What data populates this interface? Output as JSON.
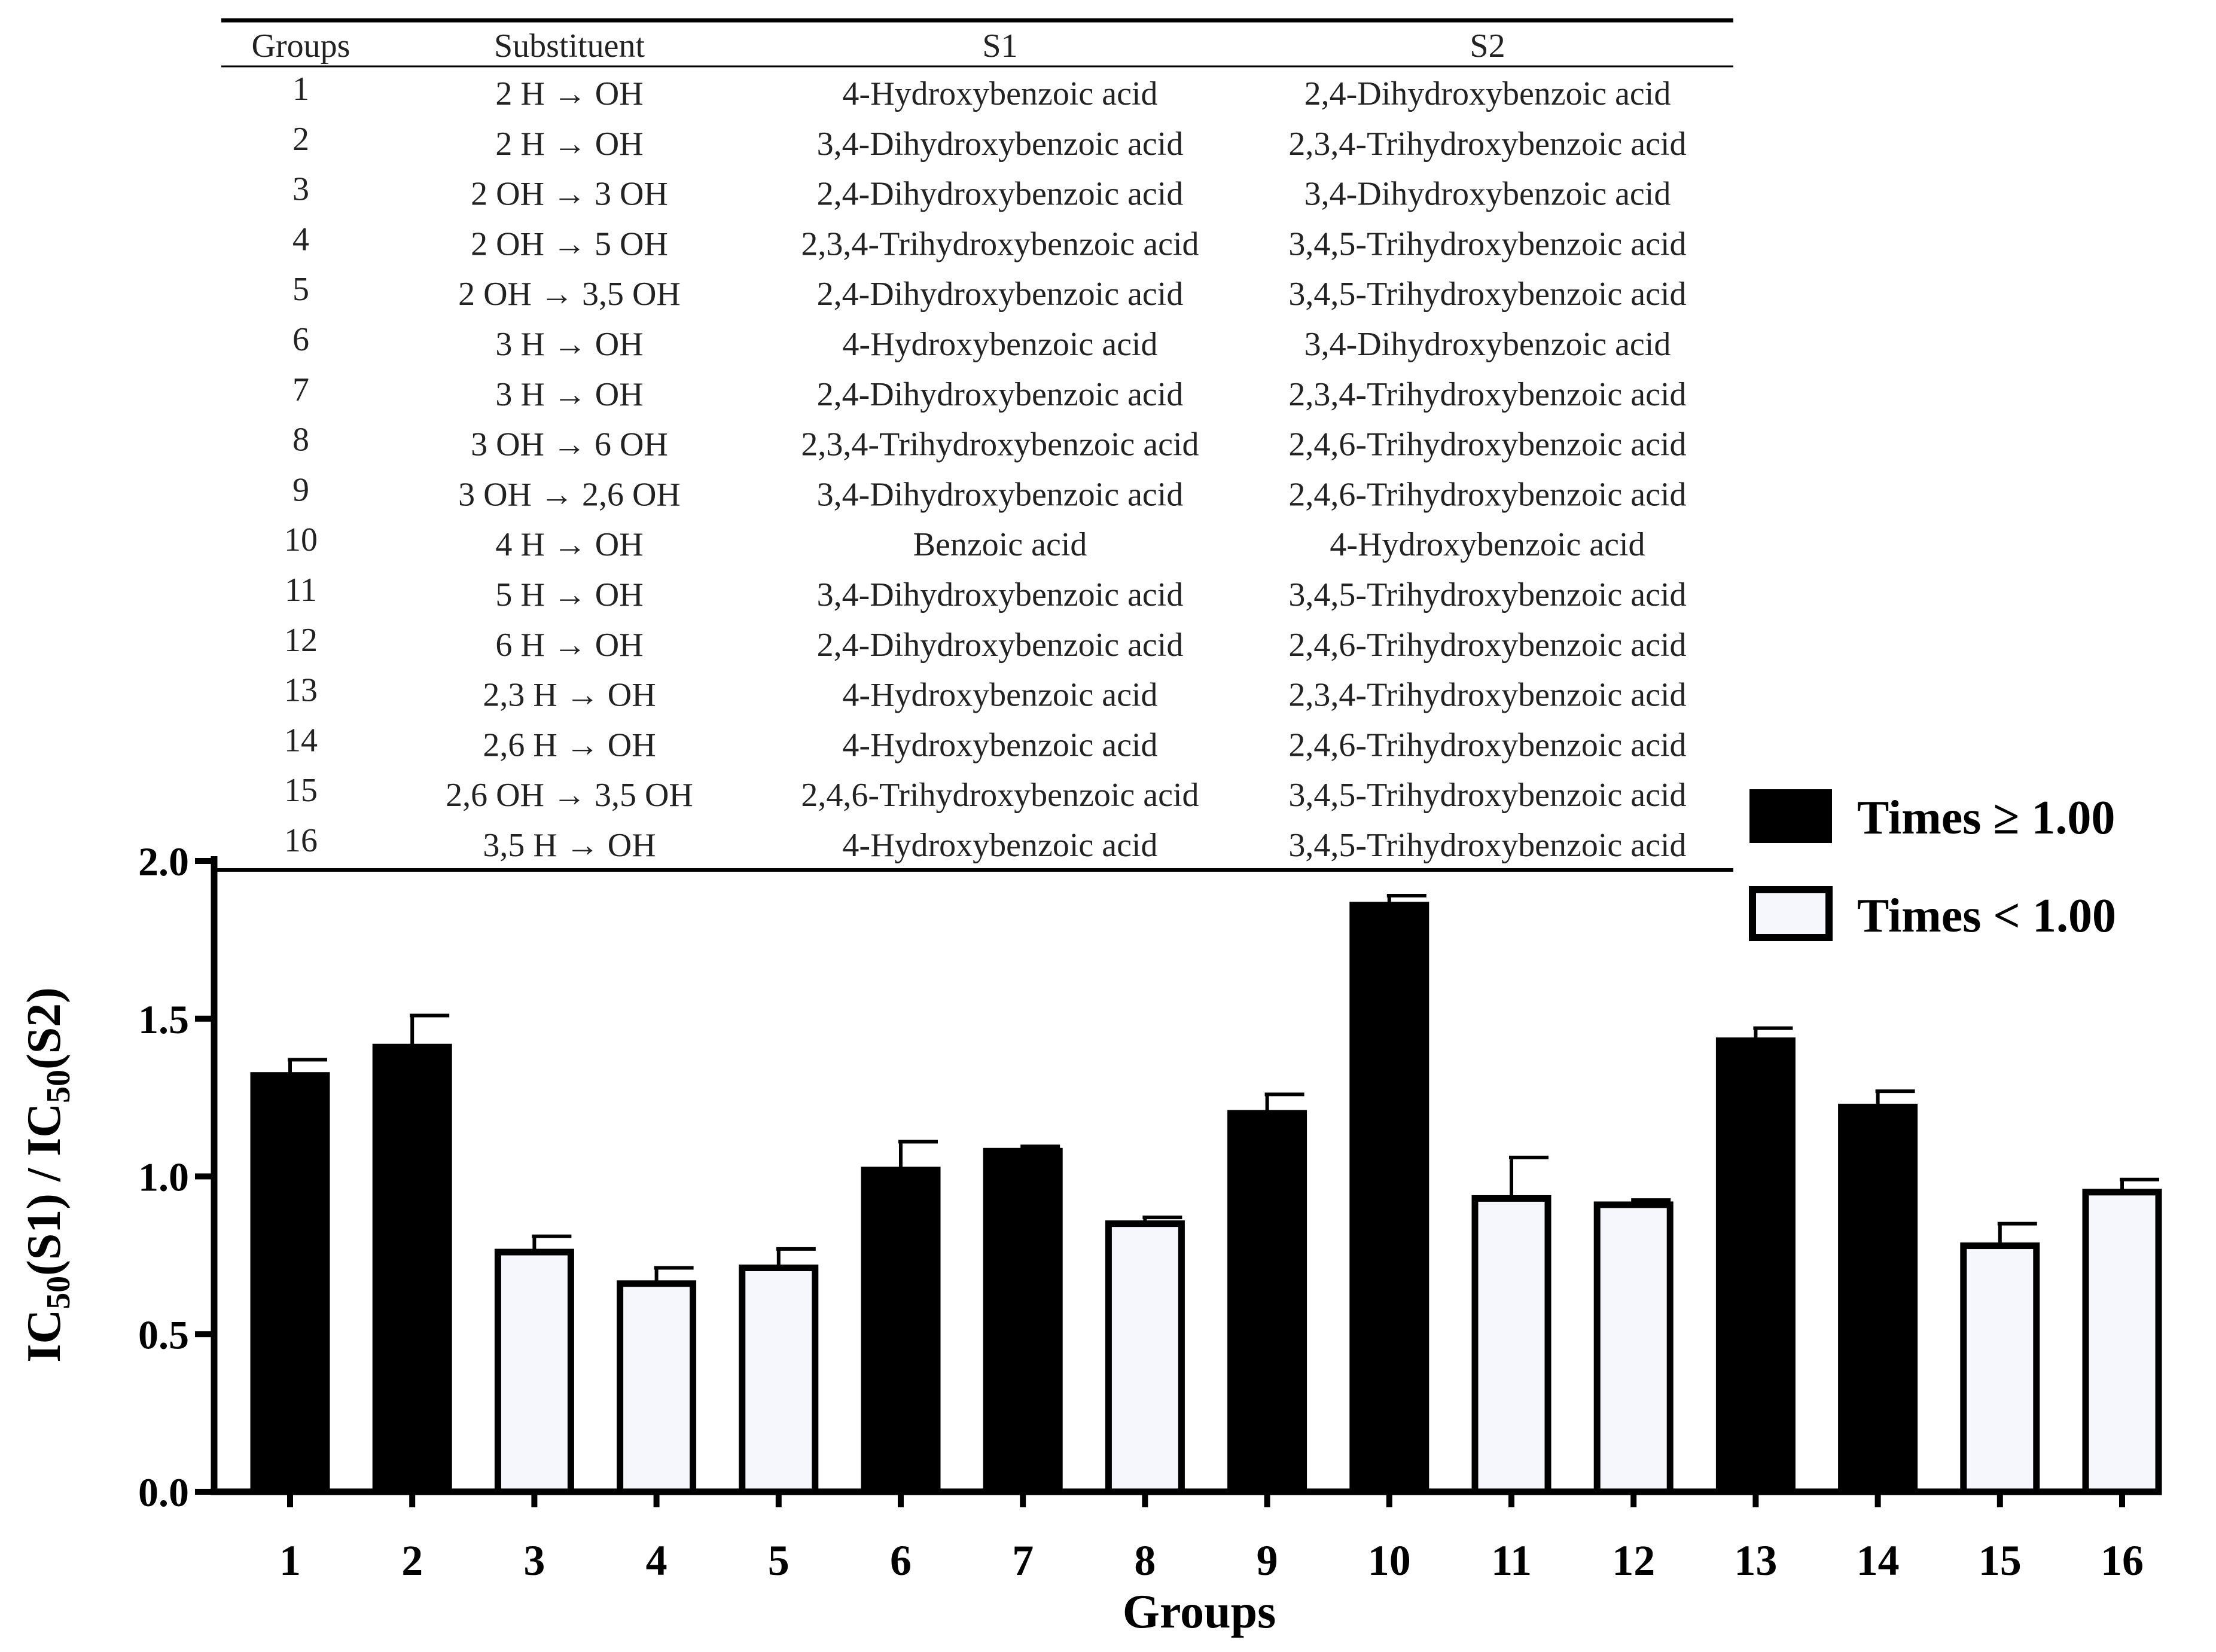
{
  "table": {
    "headers": [
      "Groups",
      "Substituent",
      "S1",
      "S2"
    ],
    "rows": [
      [
        "1",
        "2 H → OH",
        "4-Hydroxybenzoic acid",
        "2,4-Dihydroxybenzoic acid"
      ],
      [
        "2",
        "2 H → OH",
        "3,4-Dihydroxybenzoic acid",
        "2,3,4-Trihydroxybenzoic acid"
      ],
      [
        "3",
        "2 OH → 3 OH",
        "2,4-Dihydroxybenzoic acid",
        "3,4-Dihydroxybenzoic acid"
      ],
      [
        "4",
        "2 OH → 5 OH",
        "2,3,4-Trihydroxybenzoic acid",
        "3,4,5-Trihydroxybenzoic acid"
      ],
      [
        "5",
        "2 OH → 3,5 OH",
        "2,4-Dihydroxybenzoic acid",
        "3,4,5-Trihydroxybenzoic acid"
      ],
      [
        "6",
        "3 H → OH",
        "4-Hydroxybenzoic acid",
        "3,4-Dihydroxybenzoic acid"
      ],
      [
        "7",
        "3 H → OH",
        "2,4-Dihydroxybenzoic acid",
        "2,3,4-Trihydroxybenzoic acid"
      ],
      [
        "8",
        "3 OH → 6 OH",
        "2,3,4-Trihydroxybenzoic acid",
        "2,4,6-Trihydroxybenzoic acid"
      ],
      [
        "9",
        "3 OH → 2,6 OH",
        "3,4-Dihydroxybenzoic acid",
        "2,4,6-Trihydroxybenzoic acid"
      ],
      [
        "10",
        "4 H → OH",
        "Benzoic acid",
        "4-Hydroxybenzoic acid"
      ],
      [
        "11",
        "5 H → OH",
        "3,4-Dihydroxybenzoic acid",
        "3,4,5-Trihydroxybenzoic acid"
      ],
      [
        "12",
        "6 H → OH",
        "2,4-Dihydroxybenzoic acid",
        "2,4,6-Trihydroxybenzoic acid"
      ],
      [
        "13",
        "2,3 H → OH",
        "4-Hydroxybenzoic acid",
        "2,3,4-Trihydroxybenzoic acid"
      ],
      [
        "14",
        "2,6 H → OH",
        "4-Hydroxybenzoic acid",
        "2,4,6-Trihydroxybenzoic acid"
      ],
      [
        "15",
        "2,6 OH → 3,5 OH",
        "2,4,6-Trihydroxybenzoic acid",
        "3,4,5-Trihydroxybenzoic acid"
      ],
      [
        "16",
        "3,5 H → OH",
        "4-Hydroxybenzoic acid",
        "3,4,5-Trihydroxybenzoic acid"
      ]
    ]
  },
  "chart_data": {
    "type": "bar",
    "title": "",
    "categories": [
      "1",
      "2",
      "3",
      "4",
      "5",
      "6",
      "7",
      "8",
      "9",
      "10",
      "11",
      "12",
      "13",
      "14",
      "15",
      "16"
    ],
    "values": [
      1.32,
      1.41,
      0.76,
      0.66,
      0.71,
      1.02,
      1.08,
      0.85,
      1.2,
      1.86,
      0.93,
      0.91,
      1.43,
      1.22,
      0.78,
      0.95
    ],
    "errors": [
      0.05,
      0.1,
      0.05,
      0.05,
      0.06,
      0.09,
      0.015,
      0.02,
      0.06,
      0.03,
      0.13,
      0.015,
      0.04,
      0.05,
      0.07,
      0.04
    ],
    "threshold": 1.0,
    "xlabel": "Groups",
    "ylabel": {
      "base": "IC",
      "sub1": "50",
      "mid": "(S1) / IC",
      "sub2": "50",
      "tail": "(S2)"
    },
    "ylim": [
      0,
      2.0
    ],
    "yticks": [
      "0.0",
      "0.5",
      "1.0",
      "1.5",
      "2.0"
    ],
    "legend": {
      "placement": "top-right",
      "entries": [
        {
          "label": "Times ≥ 1.00",
          "color": "#000000"
        },
        {
          "label": "Times < 1.00",
          "color": "#f6f7fc"
        }
      ]
    }
  }
}
